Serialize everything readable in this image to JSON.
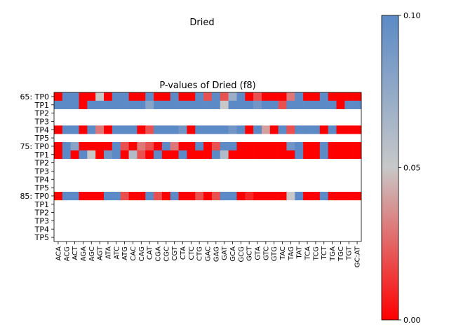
{
  "figure_title": "Dried",
  "chart_data": {
    "type": "heatmap",
    "title": "P-values of Dried (f8)",
    "row_labels": [
      "65: TP0",
      "TP1",
      "TP2",
      "TP3",
      "TP4",
      "TP5",
      "75: TP0",
      "TP1",
      "TP2",
      "TP3",
      "TP4",
      "TP5",
      "85: TP0",
      "TP1",
      "TP2",
      "TP3",
      "TP4",
      "TP5"
    ],
    "col_labels": [
      "ACA",
      "ACG",
      "ACT",
      "AGA",
      "AGC",
      "AGT",
      "ATA",
      "ATC",
      "ATG",
      "CAC",
      "CAG",
      "CAT",
      "CGA",
      "CGC",
      "CGT",
      "CTA",
      "CTC",
      "CTG",
      "GAC",
      "GAG",
      "GAT",
      "GCA",
      "GCG",
      "GCT",
      "GTA",
      "GTC",
      "GTG",
      "TAC",
      "TAG",
      "TAT",
      "TCA",
      "TCG",
      "TCT",
      "TGA",
      "TGC",
      "TGT",
      "GC:AT"
    ],
    "values": [
      [
        0.0,
        0.1,
        0.1,
        0.0,
        0.0,
        0.05,
        0.0,
        0.1,
        0.1,
        0.0,
        0.0,
        0.1,
        0.0,
        0.0,
        0.1,
        0.0,
        0.0,
        0.1,
        0.02,
        0.1,
        0.02,
        0.07,
        0.1,
        0.0,
        0.02,
        0.0,
        0.0,
        0.0,
        0.03,
        0.1,
        0.0,
        0.0,
        0.1,
        0.0,
        0.0,
        0.0,
        0.0
      ],
      [
        0.1,
        0.1,
        0.1,
        0.0,
        0.1,
        0.1,
        0.1,
        0.1,
        0.1,
        0.1,
        0.1,
        0.08,
        0.1,
        0.1,
        0.1,
        0.1,
        0.1,
        0.1,
        0.1,
        0.1,
        0.05,
        0.1,
        0.1,
        0.1,
        0.09,
        0.1,
        0.1,
        0.02,
        0.1,
        0.1,
        0.1,
        0.1,
        0.1,
        0.1,
        0.0,
        0.1,
        0.1
      ],
      [
        null,
        null,
        null,
        null,
        null,
        null,
        null,
        null,
        null,
        null,
        null,
        null,
        null,
        null,
        null,
        null,
        null,
        null,
        null,
        null,
        null,
        null,
        null,
        null,
        null,
        null,
        null,
        null,
        null,
        null,
        null,
        null,
        null,
        null,
        null,
        null,
        null
      ],
      [
        null,
        null,
        null,
        null,
        null,
        null,
        null,
        null,
        null,
        null,
        null,
        null,
        null,
        null,
        null,
        null,
        null,
        null,
        null,
        null,
        null,
        null,
        null,
        null,
        null,
        null,
        null,
        null,
        null,
        null,
        null,
        null,
        null,
        null,
        null,
        null,
        null
      ],
      [
        0.0,
        0.1,
        0.1,
        0.0,
        0.1,
        0.03,
        0.0,
        0.1,
        0.1,
        0.1,
        0.0,
        0.02,
        0.1,
        0.1,
        0.1,
        0.09,
        0.0,
        0.1,
        0.1,
        0.1,
        0.1,
        0.09,
        0.1,
        0.0,
        0.1,
        0.04,
        0.0,
        0.1,
        0.02,
        0.1,
        0.1,
        0.1,
        0.0,
        0.1,
        0.0,
        0.0,
        0.0
      ],
      [
        null,
        null,
        null,
        null,
        null,
        null,
        null,
        null,
        null,
        null,
        null,
        null,
        null,
        null,
        null,
        null,
        null,
        null,
        null,
        null,
        null,
        null,
        null,
        null,
        null,
        null,
        null,
        null,
        null,
        null,
        null,
        null,
        null,
        null,
        null,
        null,
        null
      ],
      [
        0.0,
        0.1,
        0.08,
        0.0,
        0.0,
        0.0,
        0.0,
        0.1,
        0.02,
        0.0,
        0.03,
        0.02,
        0.0,
        0.1,
        0.03,
        0.0,
        0.0,
        0.1,
        0.0,
        0.02,
        0.1,
        0.1,
        0.0,
        0.0,
        0.0,
        0.0,
        0.0,
        0.0,
        0.09,
        0.1,
        0.0,
        0.0,
        0.1,
        0.0,
        0.0,
        0.0,
        0.0
      ],
      [
        0.0,
        0.1,
        0.0,
        0.1,
        0.05,
        0.0,
        0.09,
        0.1,
        0.0,
        0.06,
        0.02,
        0.0,
        0.1,
        0.0,
        0.0,
        0.1,
        0.0,
        0.0,
        0.0,
        0.1,
        0.06,
        0.0,
        0.0,
        0.0,
        0.0,
        0.0,
        0.0,
        0.0,
        0.0,
        0.1,
        0.0,
        0.0,
        0.1,
        0.0,
        0.0,
        0.0,
        0.0
      ],
      [
        null,
        null,
        null,
        null,
        null,
        null,
        null,
        null,
        null,
        null,
        null,
        null,
        null,
        null,
        null,
        null,
        null,
        null,
        null,
        null,
        null,
        null,
        null,
        null,
        null,
        null,
        null,
        null,
        null,
        null,
        null,
        null,
        null,
        null,
        null,
        null,
        null
      ],
      [
        null,
        null,
        null,
        null,
        null,
        null,
        null,
        null,
        null,
        null,
        null,
        null,
        null,
        null,
        null,
        null,
        null,
        null,
        null,
        null,
        null,
        null,
        null,
        null,
        null,
        null,
        null,
        null,
        null,
        null,
        null,
        null,
        null,
        null,
        null,
        null,
        null
      ],
      [
        null,
        null,
        null,
        null,
        null,
        null,
        null,
        null,
        null,
        null,
        null,
        null,
        null,
        null,
        null,
        null,
        null,
        null,
        null,
        null,
        null,
        null,
        null,
        null,
        null,
        null,
        null,
        null,
        null,
        null,
        null,
        null,
        null,
        null,
        null,
        null,
        null
      ],
      [
        null,
        null,
        null,
        null,
        null,
        null,
        null,
        null,
        null,
        null,
        null,
        null,
        null,
        null,
        null,
        null,
        null,
        null,
        null,
        null,
        null,
        null,
        null,
        null,
        null,
        null,
        null,
        null,
        null,
        null,
        null,
        null,
        null,
        null,
        null,
        null,
        null
      ],
      [
        0.0,
        0.1,
        0.1,
        0.0,
        0.0,
        0.0,
        0.1,
        0.1,
        0.02,
        0.0,
        0.0,
        0.1,
        0.02,
        0.0,
        0.1,
        0.0,
        0.0,
        0.02,
        0.0,
        0.02,
        0.1,
        0.1,
        0.0,
        0.01,
        0.0,
        0.0,
        0.0,
        0.0,
        0.05,
        0.1,
        0.0,
        0.0,
        0.1,
        0.0,
        0.0,
        0.0,
        0.0
      ],
      [
        null,
        null,
        null,
        null,
        null,
        null,
        null,
        null,
        null,
        null,
        null,
        null,
        null,
        null,
        null,
        null,
        null,
        null,
        null,
        null,
        null,
        null,
        null,
        null,
        null,
        null,
        null,
        null,
        null,
        null,
        null,
        null,
        null,
        null,
        null,
        null,
        null
      ],
      [
        null,
        null,
        null,
        null,
        null,
        null,
        null,
        null,
        null,
        null,
        null,
        null,
        null,
        null,
        null,
        null,
        null,
        null,
        null,
        null,
        null,
        null,
        null,
        null,
        null,
        null,
        null,
        null,
        null,
        null,
        null,
        null,
        null,
        null,
        null,
        null,
        null
      ],
      [
        null,
        null,
        null,
        null,
        null,
        null,
        null,
        null,
        null,
        null,
        null,
        null,
        null,
        null,
        null,
        null,
        null,
        null,
        null,
        null,
        null,
        null,
        null,
        null,
        null,
        null,
        null,
        null,
        null,
        null,
        null,
        null,
        null,
        null,
        null,
        null,
        null
      ],
      [
        null,
        null,
        null,
        null,
        null,
        null,
        null,
        null,
        null,
        null,
        null,
        null,
        null,
        null,
        null,
        null,
        null,
        null,
        null,
        null,
        null,
        null,
        null,
        null,
        null,
        null,
        null,
        null,
        null,
        null,
        null,
        null,
        null,
        null,
        null,
        null,
        null
      ],
      [
        null,
        null,
        null,
        null,
        null,
        null,
        null,
        null,
        null,
        null,
        null,
        null,
        null,
        null,
        null,
        null,
        null,
        null,
        null,
        null,
        null,
        null,
        null,
        null,
        null,
        null,
        null,
        null,
        null,
        null,
        null,
        null,
        null,
        null,
        null,
        null,
        null
      ]
    ],
    "colorbar": {
      "ticks": [
        "0.00",
        "0.05",
        "0.10"
      ],
      "range": [
        0,
        0.1
      ],
      "colors": {
        "low": "#ff0000",
        "mid": "#c8c8c8",
        "high": "#5b8ac6"
      }
    }
  }
}
